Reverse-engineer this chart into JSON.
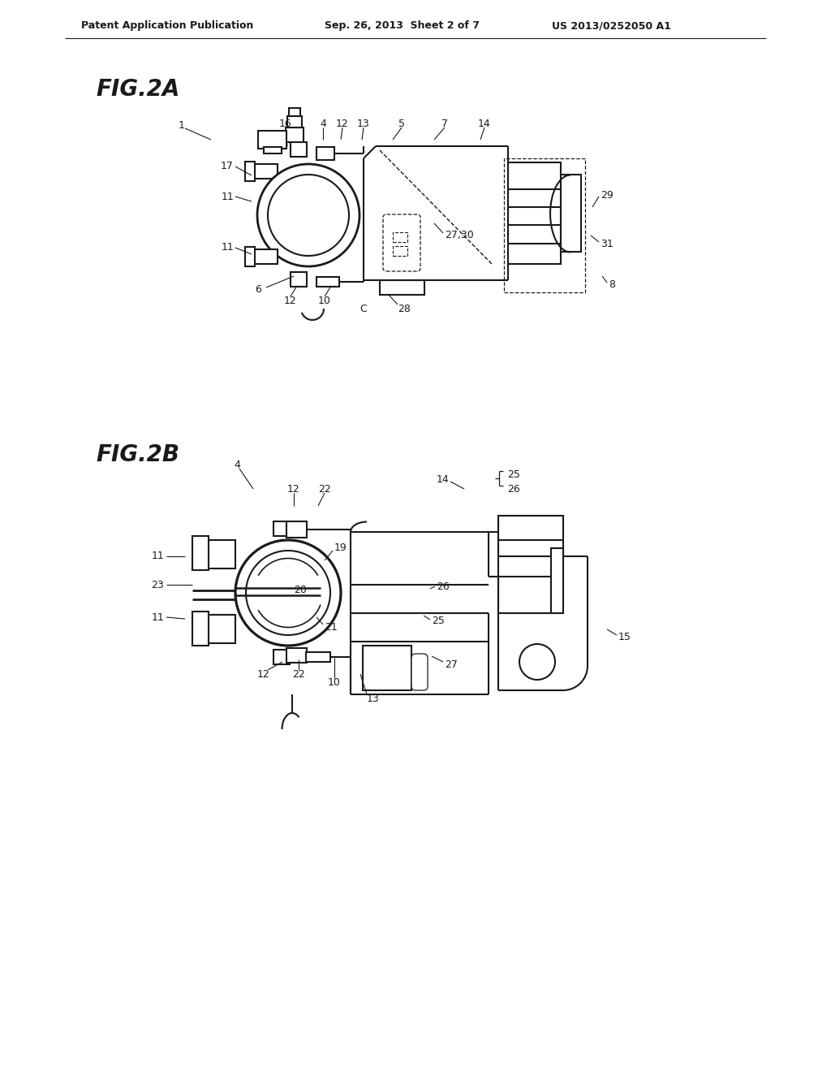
{
  "background_color": "#ffffff",
  "header_left": "Patent Application Publication",
  "header_center": "Sep. 26, 2013  Sheet 2 of 7",
  "header_right": "US 2013/0252050 A1",
  "fig2a_label": "FIG.2A",
  "fig2b_label": "FIG.2B",
  "line_color": "#1a1a1a",
  "line_width": 1.5,
  "text_color": "#1a1a1a"
}
